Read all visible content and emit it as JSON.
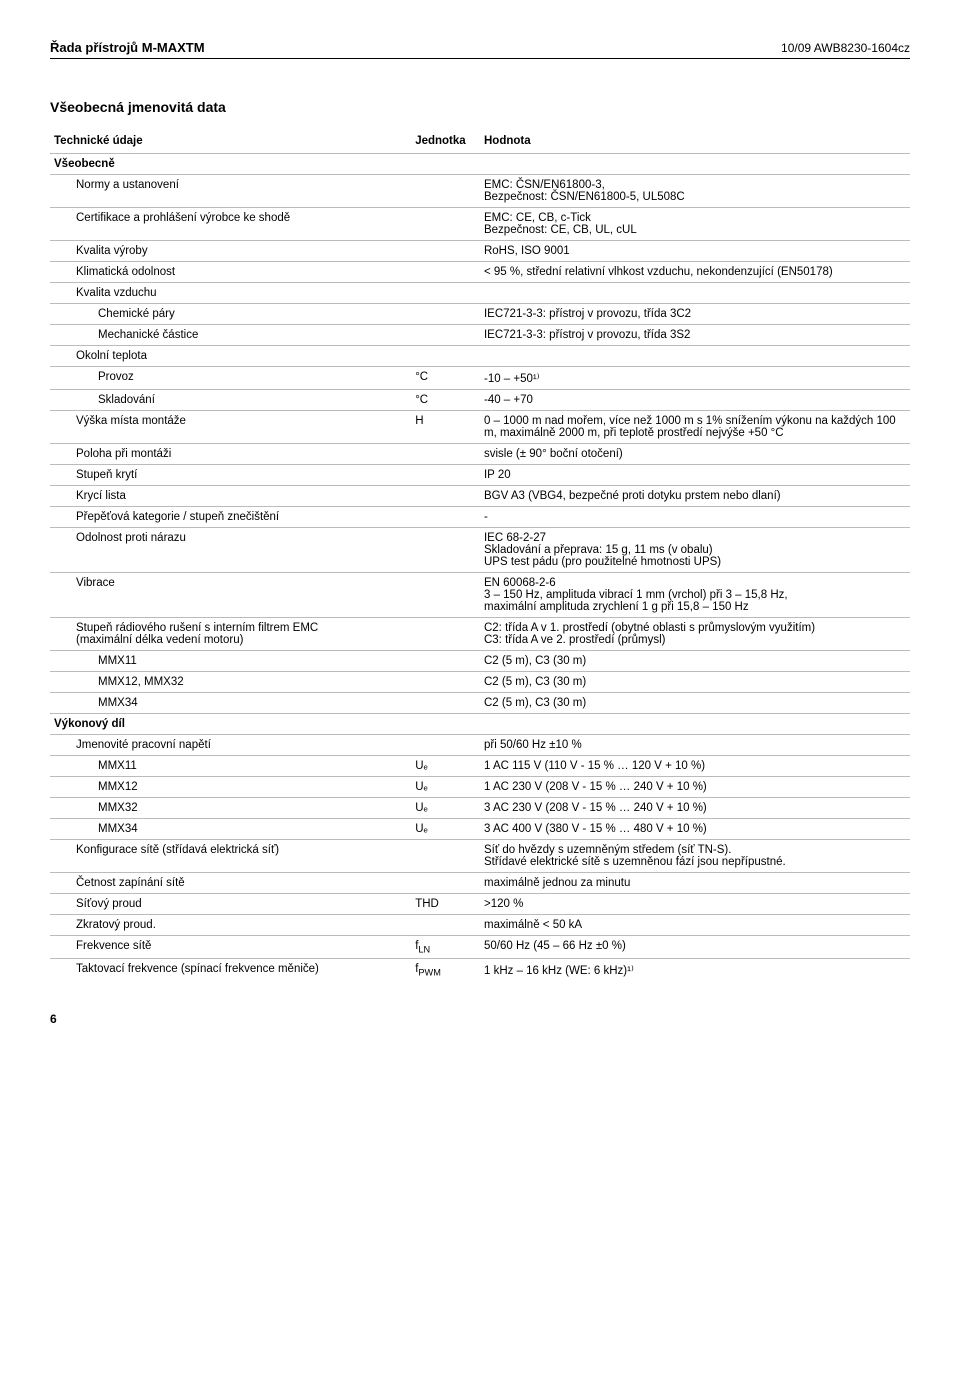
{
  "header": {
    "left": "Řada přístrojů M-MAXTM",
    "right": "10/09 AWB8230-1604cz"
  },
  "section_title": "Všeobecná jmenovitá data",
  "columns": {
    "tech": "Technické údaje",
    "unit": "Jednotka",
    "value": "Hodnota"
  },
  "groups": [
    {
      "title": "Všeobecně",
      "rows": [
        {
          "label": "Normy a ustanovení",
          "unit": "",
          "value": "EMC: ČSN/EN61800-3,\nBezpečnost: ČSN/EN61800-5, UL508C",
          "indent": 1
        },
        {
          "label": "Certifikace a prohlášení výrobce ke shodě",
          "unit": "",
          "value": "EMC: CE, CB, c-Tick\nBezpečnost: CE, CB, UL, cUL",
          "indent": 1
        },
        {
          "label": "Kvalita výroby",
          "unit": "",
          "value": "RoHS, ISO 9001",
          "indent": 1
        },
        {
          "label": "Klimatická odolnost",
          "unit": "",
          "value": "< 95 %, střední relativní vlhkost vzduchu, nekondenzující (EN50178)",
          "indent": 1
        },
        {
          "label": "Kvalita vzduchu",
          "unit": "",
          "value": "",
          "indent": 1
        },
        {
          "label": "Chemické páry",
          "unit": "",
          "value": "IEC721-3-3: přístroj v provozu, třída 3C2",
          "indent": 2
        },
        {
          "label": "Mechanické částice",
          "unit": "",
          "value": "IEC721-3-3: přístroj v provozu, třída 3S2",
          "indent": 2
        },
        {
          "label": "Okolní teplota",
          "unit": "",
          "value": "",
          "indent": 1
        },
        {
          "label": "Provoz",
          "unit": "°C",
          "value": "-10 – +50¹⁾",
          "indent": 2
        },
        {
          "label": "Skladování",
          "unit": "°C",
          "value": "-40 – +70",
          "indent": 2
        },
        {
          "label": "Výška místa montáže",
          "unit": "H",
          "value": "0 – 1000 m nad mořem, více než 1000 m s 1% snížením výkonu na každých 100 m, maximálně 2000 m, při teplotě prostředí nejvýše +50 °C",
          "indent": 1
        },
        {
          "label": "Poloha při montáži",
          "unit": "",
          "value": "svisle (± 90° boční otočení)",
          "indent": 1
        },
        {
          "label": "Stupeň krytí",
          "unit": "",
          "value": "IP 20",
          "indent": 1
        },
        {
          "label": "Krycí lista",
          "unit": "",
          "value": "BGV A3 (VBG4, bezpečné proti dotyku prstem nebo dlaní)",
          "indent": 1
        },
        {
          "label": "Přepěťová kategorie / stupeň znečištění",
          "unit": "",
          "value": "-",
          "indent": 1
        },
        {
          "label": "Odolnost proti nárazu",
          "unit": "",
          "value": "IEC 68-2-27\nSkladování a přeprava: 15 g, 11 ms (v obalu)\nUPS test pádu (pro použitelné hmotnosti UPS)",
          "indent": 1
        },
        {
          "label": "Vibrace",
          "unit": "",
          "value": "EN 60068-2-6\n3 – 150 Hz, amplituda vibrací 1 mm (vrchol) při 3 – 15,8 Hz,\nmaximální amplituda zrychlení 1 g při 15,8 – 150 Hz",
          "indent": 1
        },
        {
          "label": "Stupeň rádiového rušení s interním filtrem EMC\n(maximální délka vedení motoru)",
          "unit": "",
          "value": "C2: třída A v 1. prostředí (obytné oblasti s průmyslovým využitím)\nC3: třída A ve 2. prostředí (průmysl)",
          "indent": 1
        },
        {
          "label": "MMX11",
          "unit": "",
          "value": "C2 (5 m), C3 (30 m)",
          "indent": 2
        },
        {
          "label": "MMX12, MMX32",
          "unit": "",
          "value": "C2 (5 m), C3 (30 m)",
          "indent": 2
        },
        {
          "label": "MMX34",
          "unit": "",
          "value": "C2 (5 m), C3 (30 m)",
          "indent": 2
        }
      ]
    },
    {
      "title": "Výkonový díl",
      "rows": [
        {
          "label": "Jmenovité pracovní napětí",
          "unit": "",
          "value": "při 50/60 Hz ±10 %",
          "indent": 1
        },
        {
          "label": "MMX11",
          "unit": "Uₑ",
          "value": "1 AC 115 V (110 V - 15 % … 120 V + 10 %)",
          "indent": 2
        },
        {
          "label": "MMX12",
          "unit": "Uₑ",
          "value": "1 AC 230 V (208 V - 15 % … 240 V + 10 %)",
          "indent": 2
        },
        {
          "label": "MMX32",
          "unit": "Uₑ",
          "value": "3 AC 230 V (208 V - 15 % … 240 V + 10 %)",
          "indent": 2
        },
        {
          "label": "MMX34",
          "unit": "Uₑ",
          "value": "3 AC 400 V (380 V - 15 % … 480 V + 10 %)",
          "indent": 2
        },
        {
          "label": "Konfigurace sítě (střídavá elektrická síť)",
          "unit": "",
          "value": "Síť do hvězdy s uzemněným středem (síť TN-S).\nStřídavé elektrické sítě s uzemněnou fází jsou nepřípustné.",
          "indent": 1
        },
        {
          "label": "Četnost zapínání sítě",
          "unit": "",
          "value": "maximálně jednou za minutu",
          "indent": 1
        },
        {
          "label": "Síťový proud",
          "unit": "THD",
          "value": ">120 %",
          "indent": 1
        },
        {
          "label": "Zkratový proud.",
          "unit": "",
          "value": "maximálně < 50 kA",
          "indent": 1
        },
        {
          "label": "Frekvence sítě",
          "unit": "f_LN",
          "value": "50/60 Hz (45 – 66 Hz ±0 %)",
          "indent": 1
        },
        {
          "label": "Taktovací frekvence (spínací frekvence měniče)",
          "unit": "f_PWM",
          "value": "1 kHz – 16 kHz (WE: 6 kHz)¹⁾",
          "indent": 1
        }
      ]
    }
  ],
  "page_number": "6"
}
